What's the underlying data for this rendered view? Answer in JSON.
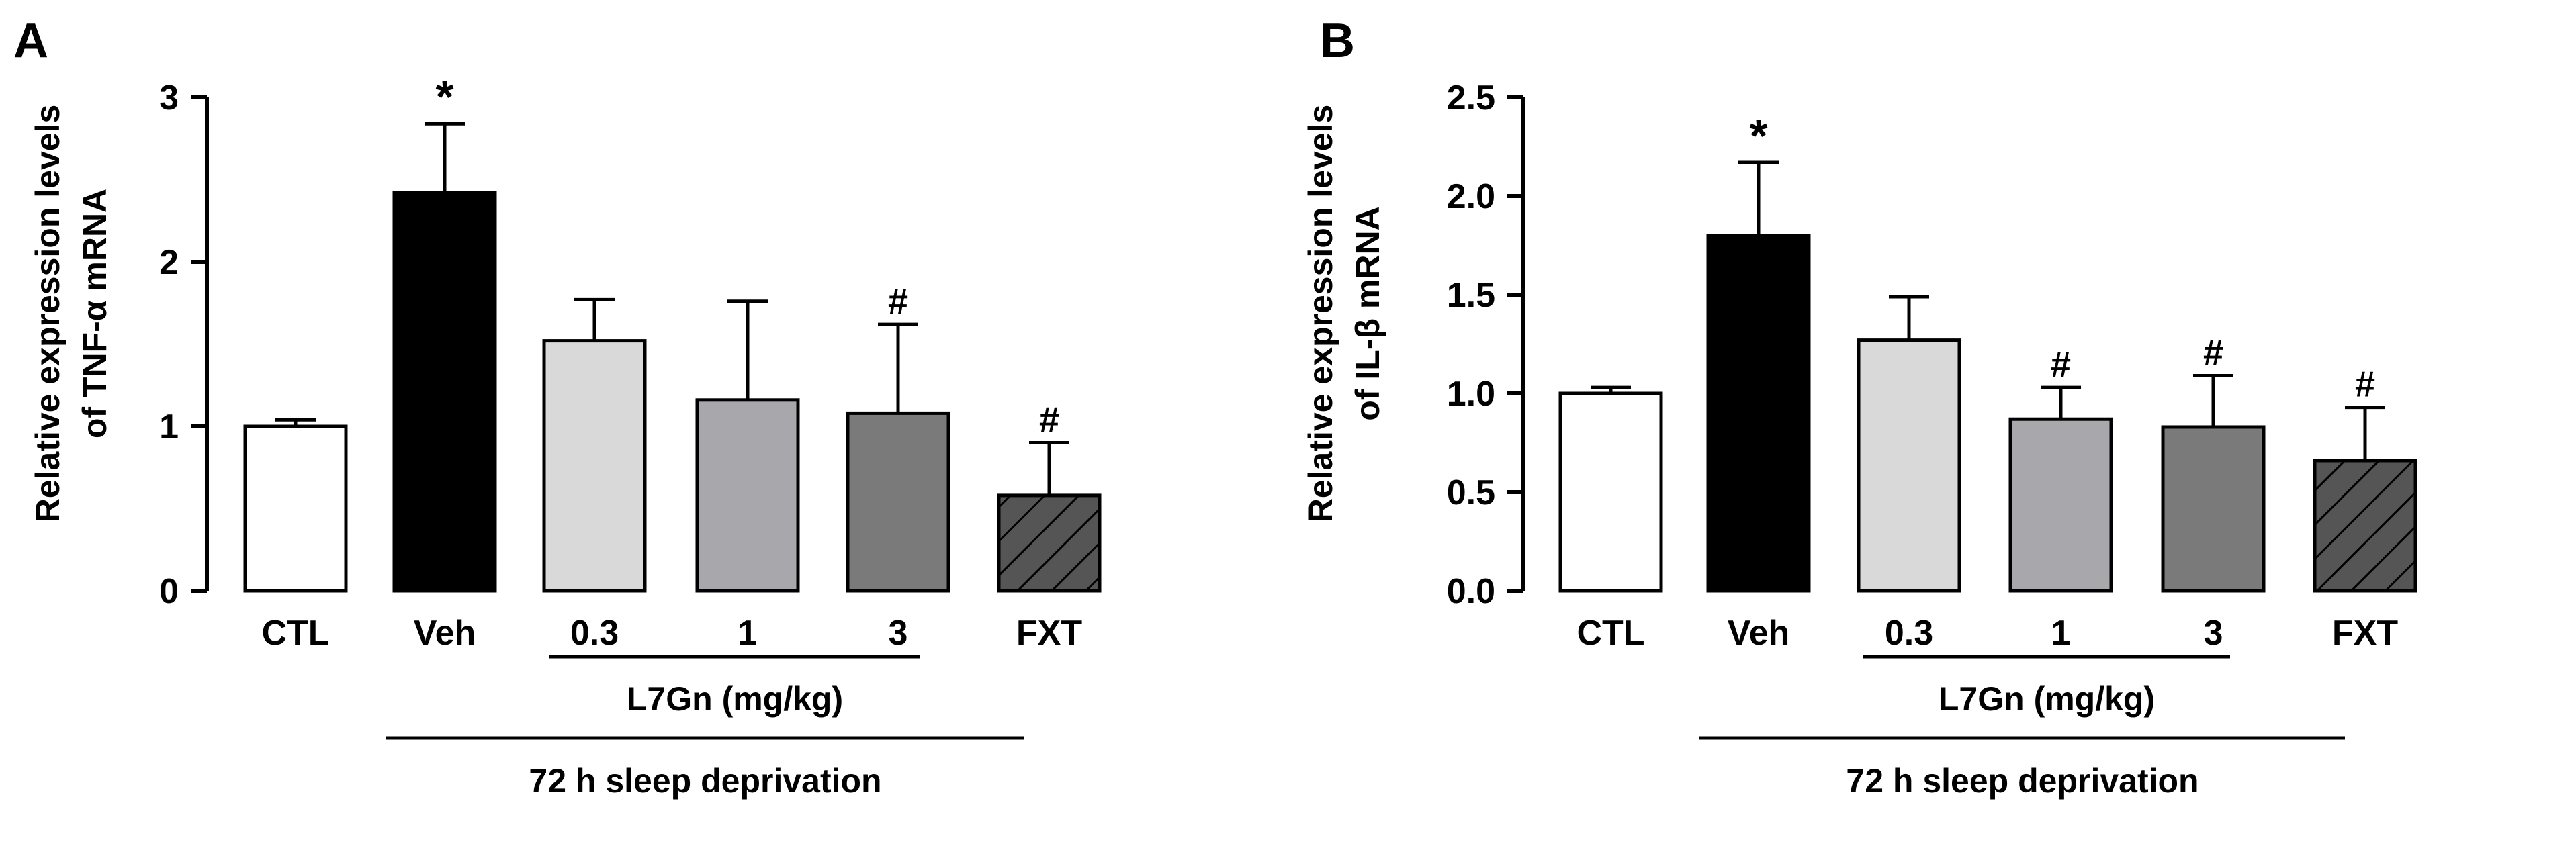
{
  "colors": {
    "ctl": "#ffffff",
    "veh": "#000000",
    "d03": "#d9d9d9",
    "d1": "#a8a8ac",
    "d3": "#7a7a7a",
    "fxt": "#555555",
    "stroke": "#000000"
  },
  "group_labels": {
    "drug": "L7Gn (mg/kg)",
    "condition": "72 h sleep deprivation"
  },
  "chart_data": [
    {
      "type": "bar",
      "panel_label": "A",
      "ylabel_line1": "Relative expression levels",
      "ylabel_line2": "of TNF-α mRNA",
      "ylim": [
        0,
        3
      ],
      "yticks": [
        "0",
        "1",
        "2",
        "3"
      ],
      "ytick_values": [
        0,
        1,
        2,
        3
      ],
      "categories": [
        "CTL",
        "Veh",
        "0.3",
        "1",
        "3",
        "FXT"
      ],
      "values": [
        1.0,
        2.42,
        1.52,
        1.16,
        1.08,
        0.58
      ],
      "errors": [
        0.04,
        0.42,
        0.25,
        0.6,
        0.54,
        0.32
      ],
      "markers": [
        "",
        "*",
        "",
        "",
        "#",
        "#"
      ],
      "fills": [
        "ctl",
        "veh",
        "d03",
        "d1",
        "d3",
        "fxt"
      ],
      "hatched": [
        false,
        false,
        false,
        false,
        false,
        true
      ]
    },
    {
      "type": "bar",
      "panel_label": "B",
      "ylabel_line1": "Relative expression levels",
      "ylabel_line2": "of IL-β mRNA",
      "ylim": [
        0,
        2.5
      ],
      "yticks": [
        "0.0",
        "0.5",
        "1.0",
        "1.5",
        "2.0",
        "2.5"
      ],
      "ytick_values": [
        0,
        0.5,
        1.0,
        1.5,
        2.0,
        2.5
      ],
      "categories": [
        "CTL",
        "Veh",
        "0.3",
        "1",
        "3",
        "FXT"
      ],
      "values": [
        1.0,
        1.8,
        1.27,
        0.87,
        0.83,
        0.66
      ],
      "errors": [
        0.03,
        0.37,
        0.22,
        0.16,
        0.26,
        0.27
      ],
      "markers": [
        "",
        "*",
        "",
        "#",
        "#",
        "#"
      ],
      "fills": [
        "ctl",
        "veh",
        "d03",
        "d1",
        "d3",
        "fxt"
      ],
      "hatched": [
        false,
        false,
        false,
        false,
        false,
        true
      ]
    }
  ]
}
